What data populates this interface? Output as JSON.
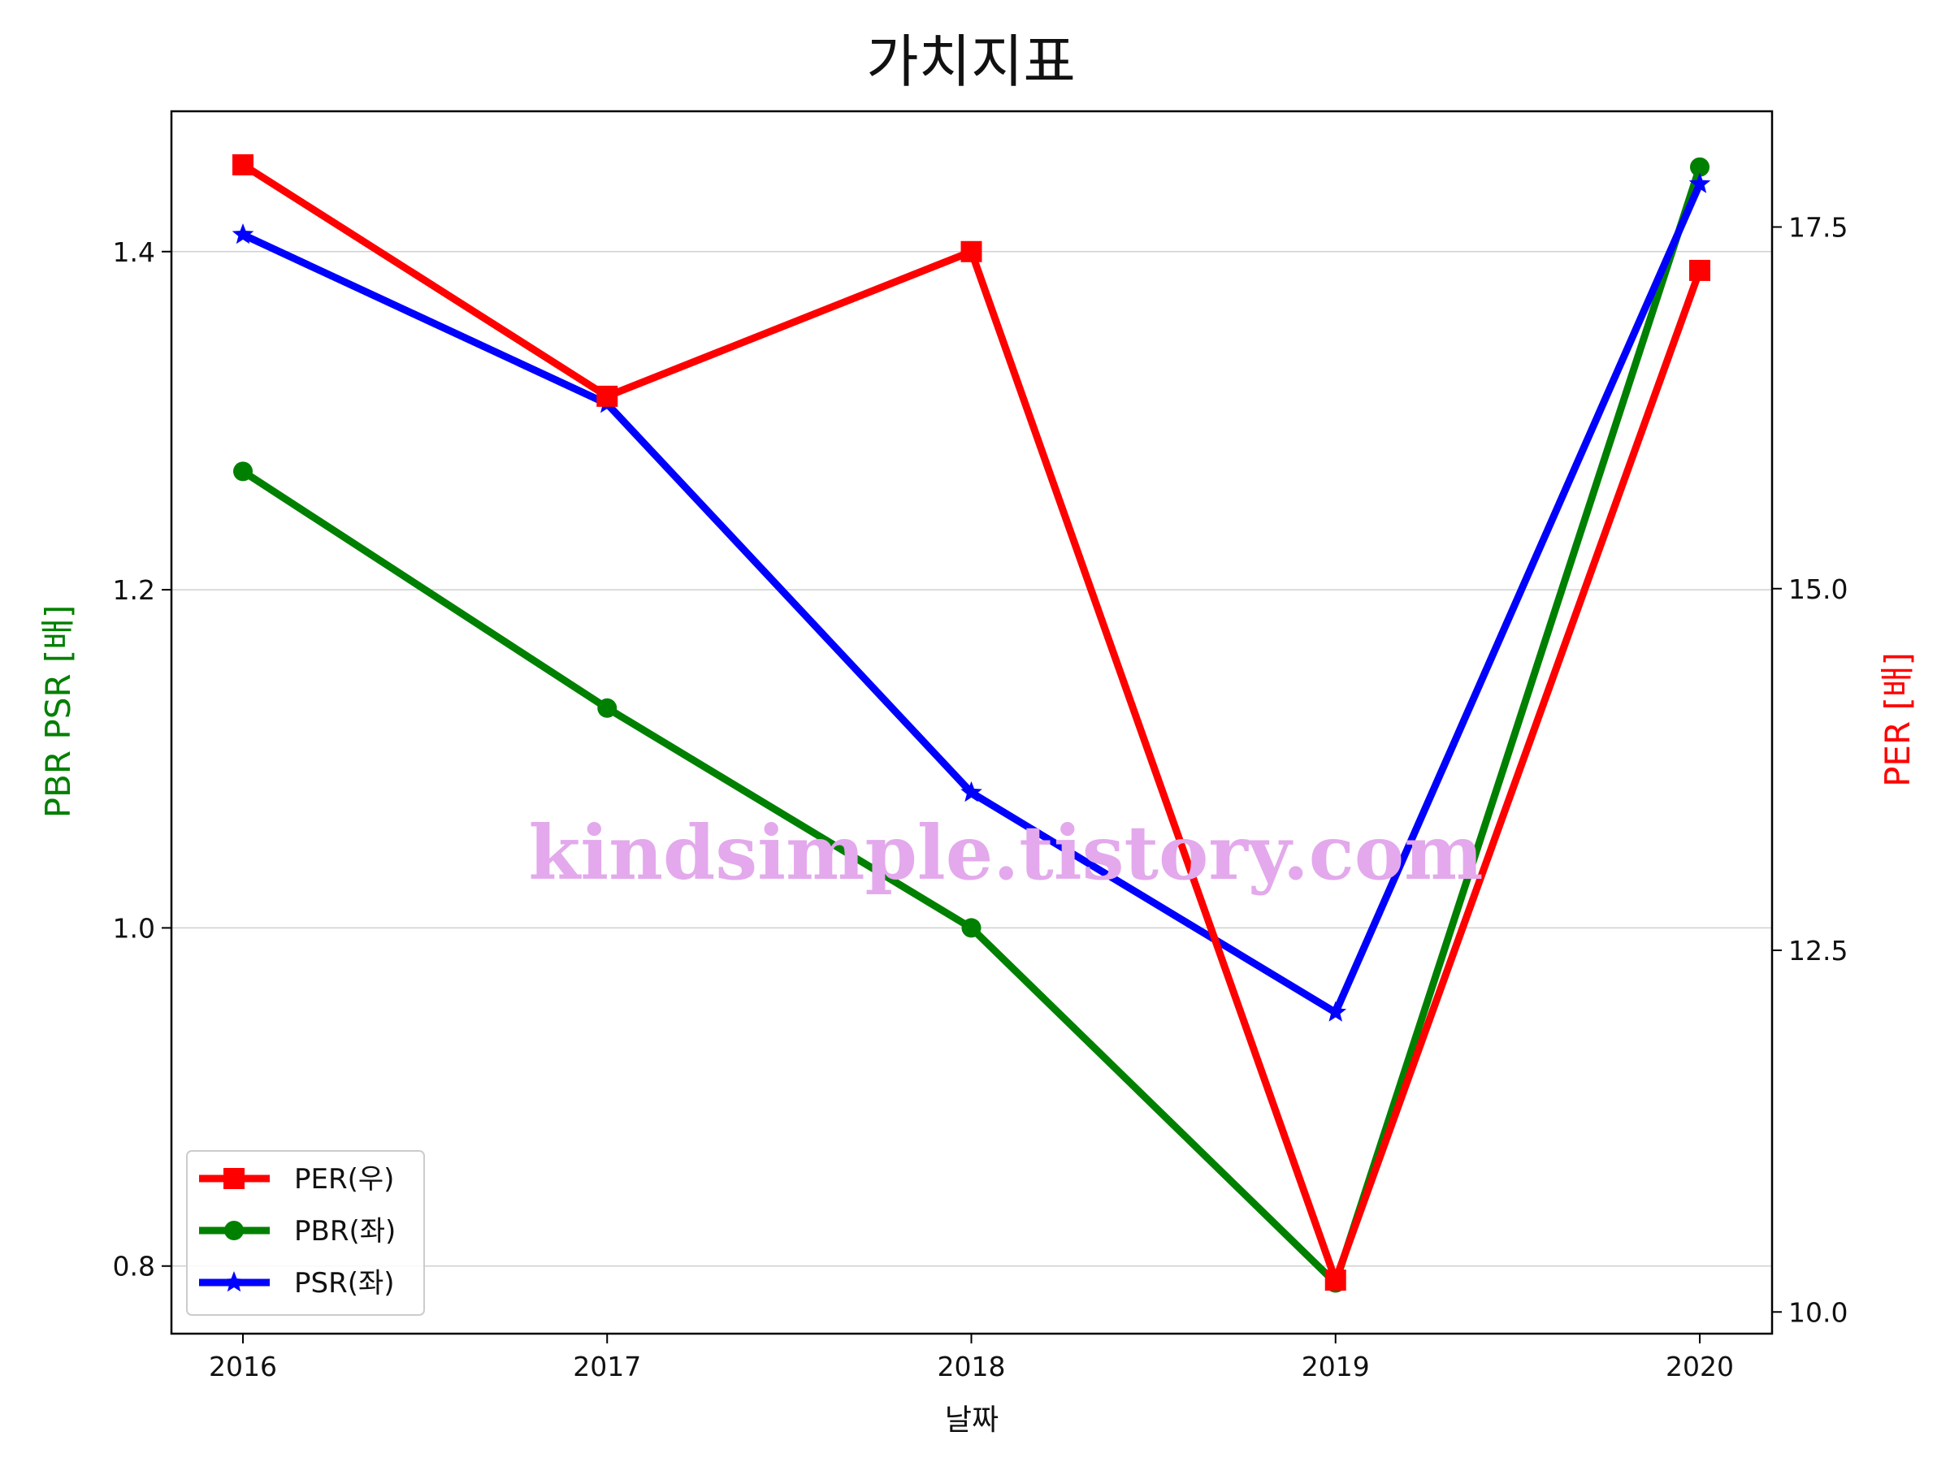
{
  "chart_data": {
    "type": "line",
    "title": "가치지표",
    "xlabel": "날짜",
    "ylabel_left": "PBR PSR [배]",
    "ylabel_right": "PER [배]",
    "categories": [
      "2016",
      "2017",
      "2018",
      "2019",
      "2020"
    ],
    "left_axis": {
      "ylim": [
        0.76,
        1.483
      ],
      "ticks": [
        0.8,
        1.0,
        1.2,
        1.4
      ],
      "tick_labels": [
        "0.8",
        "1.0",
        "1.2",
        "1.4"
      ],
      "color": "#008000"
    },
    "right_axis": {
      "ylim": [
        9.85,
        18.3
      ],
      "ticks": [
        10.0,
        12.5,
        15.0,
        17.5
      ],
      "tick_labels": [
        "10.0",
        "12.5",
        "15.0",
        "17.5"
      ],
      "color": "#ff0000"
    },
    "grid": "horizontal (left axis)",
    "legend_position": "lower-left",
    "series": [
      {
        "name": "PER(우)",
        "axis": "right",
        "color": "#ff0000",
        "marker": "square",
        "values": [
          17.93,
          16.33,
          17.33,
          10.22,
          17.2
        ]
      },
      {
        "name": "PBR(좌)",
        "axis": "left",
        "color": "#008000",
        "marker": "circle",
        "values": [
          1.27,
          1.13,
          1.0,
          0.79,
          1.45
        ]
      },
      {
        "name": "PSR(좌)",
        "axis": "left",
        "color": "#0000ff",
        "marker": "star",
        "values": [
          1.41,
          1.31,
          1.08,
          0.95,
          1.44
        ]
      }
    ],
    "watermark": "kindsimple.tistory.com"
  }
}
